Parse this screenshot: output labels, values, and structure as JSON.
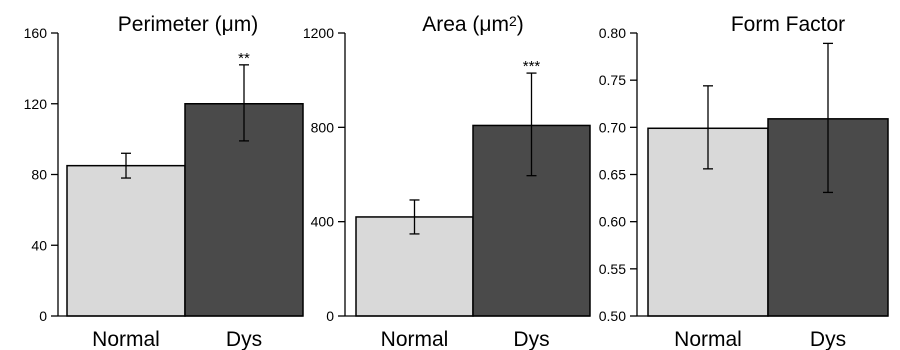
{
  "chart_data": [
    {
      "type": "bar",
      "title_main": "Perimeter (",
      "title_unit": "μm",
      "title_close": ")",
      "title_sup": "",
      "categories": [
        "Normal",
        "Dys"
      ],
      "values": [
        85,
        120
      ],
      "errors": [
        {
          "low": 78,
          "high": 92
        },
        {
          "low": 99,
          "high": 142
        }
      ],
      "annotations": [
        "",
        "**"
      ],
      "ylim": [
        0,
        160
      ],
      "yticks": [
        0,
        40,
        80,
        120,
        160
      ],
      "yticklabels": [
        "0",
        "40",
        "80",
        "120",
        "160"
      ],
      "colors": [
        "#d9d9d9",
        "#4a4a4a"
      ]
    },
    {
      "type": "bar",
      "title_main": "Area (",
      "title_unit": "μm",
      "title_close": ")",
      "title_sup": "2",
      "categories": [
        "Normal",
        "Dys"
      ],
      "values": [
        420,
        808
      ],
      "errors": [
        {
          "low": 348,
          "high": 492
        },
        {
          "low": 595,
          "high": 1030
        }
      ],
      "annotations": [
        "",
        "***"
      ],
      "ylim": [
        0,
        1200
      ],
      "yticks": [
        0,
        400,
        800,
        1200
      ],
      "yticklabels": [
        "0",
        "400",
        "800",
        "1200"
      ],
      "colors": [
        "#d9d9d9",
        "#4a4a4a"
      ]
    },
    {
      "type": "bar",
      "title_main": "Form Factor",
      "title_unit": "",
      "title_close": "",
      "title_sup": "",
      "categories": [
        "Normal",
        "Dys"
      ],
      "values": [
        0.699,
        0.709
      ],
      "errors": [
        {
          "low": 0.656,
          "high": 0.744
        },
        {
          "low": 0.631,
          "high": 0.789
        }
      ],
      "annotations": [
        "",
        ""
      ],
      "ylim": [
        0.5,
        0.8
      ],
      "yticks": [
        0.5,
        0.55,
        0.6,
        0.65,
        0.7,
        0.75,
        0.8
      ],
      "yticklabels": [
        "0.50",
        "0.55",
        "0.60",
        "0.65",
        "0.70",
        "0.75",
        "0.80"
      ],
      "colors": [
        "#d9d9d9",
        "#4a4a4a"
      ]
    }
  ]
}
